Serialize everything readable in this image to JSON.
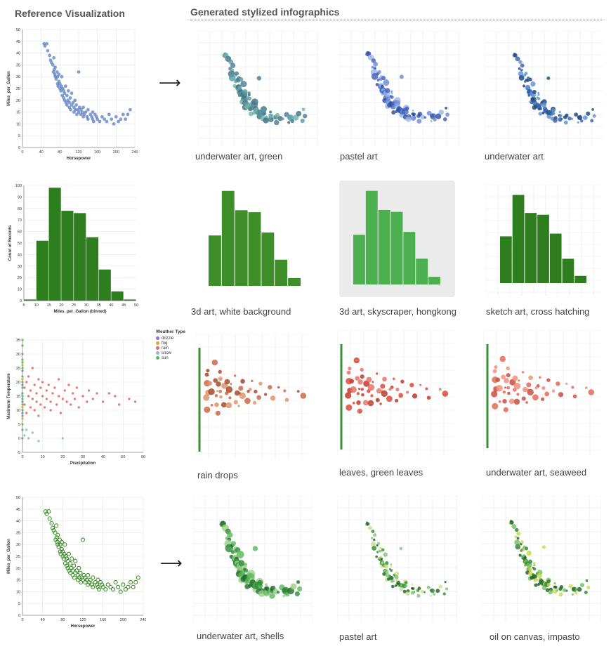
{
  "headers": {
    "reference": "Reference Visualization",
    "generated": "Generated stylized infographics"
  },
  "arrow_glyph": "⟶",
  "rows": [
    {
      "captions": [
        "underwater art, green",
        "pastel art",
        "underwater art"
      ]
    },
    {
      "captions": [
        "3d art, white background",
        "3d art, skyscraper, hongkong",
        "sketch art, cross hatching"
      ]
    },
    {
      "captions": [
        "rain drops",
        "leaves, green leaves",
        "underwater art, seaweed"
      ]
    },
    {
      "captions": [
        "underwater art, shells",
        "pastel art",
        "oil on canvas, impasto"
      ]
    }
  ],
  "colors": {
    "scatter_blue": "#5b7fbf",
    "bar_green": "#2e7d1e",
    "point_green": "#3f8f2a",
    "grid": "#e4e4e4",
    "weather_drizzle": "#7f7fd0",
    "weather_fog": "#e8a33d",
    "weather_rain": "#e06b66",
    "weather_snow": "#8fb8c8",
    "weather_sun": "#5cb85c"
  },
  "chart_data": [
    {
      "type": "scatter",
      "xlabel": "Horsepower",
      "ylabel": "Miles_per_Gallon",
      "xlim": [
        0,
        240
      ],
      "ylim": [
        0,
        50
      ],
      "xticks": [
        "0",
        "40",
        "80",
        "120",
        "160",
        "200",
        "240"
      ],
      "yticks": [
        "0",
        "5",
        "10",
        "15",
        "20",
        "25",
        "30",
        "35",
        "40",
        "45",
        "50"
      ],
      "color": "#5b7fbf",
      "points": [
        [
          46,
          44
        ],
        [
          48,
          43
        ],
        [
          52,
          44
        ],
        [
          54,
          41
        ],
        [
          58,
          39
        ],
        [
          60,
          37
        ],
        [
          62,
          36
        ],
        [
          65,
          35
        ],
        [
          66,
          32
        ],
        [
          67,
          38
        ],
        [
          68,
          33
        ],
        [
          69,
          31
        ],
        [
          70,
          30
        ],
        [
          70,
          34
        ],
        [
          72,
          29
        ],
        [
          74,
          32
        ],
        [
          75,
          27
        ],
        [
          75,
          30
        ],
        [
          76,
          26
        ],
        [
          78,
          28
        ],
        [
          78,
          31
        ],
        [
          80,
          25
        ],
        [
          80,
          27
        ],
        [
          82,
          24
        ],
        [
          83,
          26
        ],
        [
          84,
          30
        ],
        [
          85,
          22
        ],
        [
          86,
          25
        ],
        [
          88,
          24
        ],
        [
          88,
          21
        ],
        [
          90,
          20
        ],
        [
          90,
          23
        ],
        [
          92,
          26
        ],
        [
          93,
          19
        ],
        [
          95,
          22
        ],
        [
          95,
          18
        ],
        [
          97,
          20
        ],
        [
          98,
          24
        ],
        [
          100,
          17
        ],
        [
          100,
          19
        ],
        [
          102,
          21
        ],
        [
          103,
          16
        ],
        [
          105,
          18
        ],
        [
          105,
          23
        ],
        [
          108,
          19
        ],
        [
          110,
          17
        ],
        [
          110,
          15
        ],
        [
          112,
          20
        ],
        [
          113,
          16
        ],
        [
          115,
          18
        ],
        [
          116,
          14
        ],
        [
          118,
          16
        ],
        [
          120,
          15
        ],
        [
          120,
          32
        ],
        [
          122,
          17
        ],
        [
          125,
          14
        ],
        [
          125,
          16
        ],
        [
          128,
          15
        ],
        [
          130,
          13
        ],
        [
          130,
          17
        ],
        [
          132,
          14
        ],
        [
          135,
          15
        ],
        [
          138,
          13
        ],
        [
          140,
          12
        ],
        [
          140,
          16
        ],
        [
          145,
          14
        ],
        [
          148,
          13
        ],
        [
          150,
          15
        ],
        [
          150,
          12
        ],
        [
          152,
          11
        ],
        [
          155,
          14
        ],
        [
          158,
          13
        ],
        [
          160,
          12
        ],
        [
          165,
          11
        ],
        [
          170,
          13
        ],
        [
          175,
          12
        ],
        [
          180,
          11
        ],
        [
          185,
          14
        ],
        [
          190,
          12
        ],
        [
          195,
          10
        ],
        [
          200,
          13
        ],
        [
          205,
          11
        ],
        [
          210,
          12
        ],
        [
          215,
          14
        ],
        [
          220,
          12
        ],
        [
          225,
          14
        ],
        [
          230,
          16
        ]
      ]
    },
    {
      "type": "bar",
      "xlabel": "Miles_per_Gallon (binned)",
      "ylabel": "Count of Records",
      "bins": [
        [
          5,
          10
        ],
        [
          10,
          15
        ],
        [
          15,
          20
        ],
        [
          20,
          25
        ],
        [
          25,
          30
        ],
        [
          30,
          35
        ],
        [
          35,
          40
        ],
        [
          40,
          45
        ],
        [
          45,
          50
        ]
      ],
      "values": [
        1,
        52,
        98,
        78,
        76,
        55,
        27,
        8,
        1
      ],
      "xticks": [
        "5",
        "10",
        "15",
        "20",
        "25",
        "30",
        "35",
        "40",
        "45",
        "50"
      ],
      "yticks": [
        "0",
        "10",
        "20",
        "30",
        "40",
        "50",
        "60",
        "70",
        "80",
        "90",
        "100"
      ],
      "ylim": [
        0,
        100
      ],
      "color": "#2e7d1e"
    },
    {
      "type": "scatter",
      "xlabel": "Precipitation",
      "ylabel": "Maximum Temperature",
      "xlim": [
        0,
        60
      ],
      "ylim": [
        -5,
        35
      ],
      "xticks": [
        "0",
        "10",
        "20",
        "30",
        "40",
        "50",
        "60"
      ],
      "yticks": [
        "-5",
        "0",
        "5",
        "10",
        "15",
        "20",
        "25",
        "30",
        "35"
      ],
      "legend": {
        "title": "Weather Type",
        "items": [
          {
            "label": "drizzle",
            "color": "#7f7fd0"
          },
          {
            "label": "fog",
            "color": "#e8a33d"
          },
          {
            "label": "rain",
            "color": "#e06b66"
          },
          {
            "label": "snow",
            "color": "#8fb8c8"
          },
          {
            "label": "sun",
            "color": "#5cb85c"
          }
        ]
      },
      "series": [
        {
          "name": "sun",
          "color": "#5cb85c",
          "points": [
            [
              0,
              5
            ],
            [
              0,
              8
            ],
            [
              0,
              12
            ],
            [
              0,
              15
            ],
            [
              0,
              18
            ],
            [
              0,
              20
            ],
            [
              0,
              22
            ],
            [
              0,
              25
            ],
            [
              0,
              28
            ],
            [
              0,
              30
            ],
            [
              0,
              33
            ],
            [
              0,
              35
            ],
            [
              0,
              3
            ],
            [
              0,
              0
            ],
            [
              0,
              10
            ],
            [
              0,
              27
            ],
            [
              0,
              14
            ]
          ]
        },
        {
          "name": "drizzle",
          "color": "#7f7fd0",
          "points": [
            [
              0,
              9
            ],
            [
              0,
              13
            ],
            [
              0,
              16
            ],
            [
              0,
              19
            ],
            [
              0,
              24
            ]
          ]
        },
        {
          "name": "fog",
          "color": "#e8a33d",
          "points": [
            [
              0,
              7
            ],
            [
              0,
              11
            ],
            [
              0,
              21
            ],
            [
              0,
              26
            ]
          ]
        },
        {
          "name": "snow",
          "color": "#8fb8c8",
          "points": [
            [
              1,
              1
            ],
            [
              2,
              3
            ],
            [
              3,
              0
            ],
            [
              5,
              2
            ],
            [
              8,
              -1
            ],
            [
              20,
              0
            ]
          ]
        },
        {
          "name": "rain",
          "color": "#e06b66",
          "points": [
            [
              1,
              18
            ],
            [
              1,
              12
            ],
            [
              2,
              20
            ],
            [
              2,
              9
            ],
            [
              3,
              15
            ],
            [
              3,
              22
            ],
            [
              4,
              11
            ],
            [
              4,
              17
            ],
            [
              5,
              14
            ],
            [
              5,
              25
            ],
            [
              6,
              10
            ],
            [
              6,
              19
            ],
            [
              7,
              13
            ],
            [
              7,
              16
            ],
            [
              8,
              21
            ],
            [
              8,
              8
            ],
            [
              9,
              12
            ],
            [
              9,
              18
            ],
            [
              10,
              15
            ],
            [
              10,
              20
            ],
            [
              11,
              11
            ],
            [
              12,
              14
            ],
            [
              12,
              17
            ],
            [
              13,
              19
            ],
            [
              14,
              13
            ],
            [
              14,
              10
            ],
            [
              15,
              16
            ],
            [
              16,
              18
            ],
            [
              17,
              12
            ],
            [
              18,
              15
            ],
            [
              18,
              21
            ],
            [
              19,
              9
            ],
            [
              20,
              14
            ],
            [
              21,
              17
            ],
            [
              22,
              13
            ],
            [
              23,
              19
            ],
            [
              24,
              12
            ],
            [
              25,
              16
            ],
            [
              26,
              14
            ],
            [
              27,
              18
            ],
            [
              28,
              11
            ],
            [
              30,
              15
            ],
            [
              32,
              13
            ],
            [
              33,
              17
            ],
            [
              35,
              14
            ],
            [
              37,
              16
            ],
            [
              40,
              13
            ],
            [
              43,
              16
            ],
            [
              46,
              15
            ],
            [
              48,
              12
            ],
            [
              53,
              14
            ],
            [
              56,
              13
            ]
          ]
        }
      ]
    },
    {
      "type": "scatter",
      "xlabel": "Horsepower",
      "ylabel": "Miles_per_Gallon",
      "xlim": [
        0,
        240
      ],
      "ylim": [
        0,
        50
      ],
      "xticks": [
        "0",
        "40",
        "80",
        "120",
        "160",
        "200",
        "240"
      ],
      "yticks": [
        "0",
        "5",
        "10",
        "15",
        "20",
        "25",
        "30",
        "35",
        "40",
        "45",
        "50"
      ],
      "color": "#3f8f2a",
      "marker": "hollow",
      "points": [
        [
          46,
          44
        ],
        [
          48,
          43
        ],
        [
          52,
          44
        ],
        [
          54,
          41
        ],
        [
          58,
          39
        ],
        [
          60,
          37
        ],
        [
          62,
          36
        ],
        [
          65,
          35
        ],
        [
          66,
          32
        ],
        [
          67,
          38
        ],
        [
          68,
          33
        ],
        [
          69,
          31
        ],
        [
          70,
          30
        ],
        [
          70,
          34
        ],
        [
          72,
          29
        ],
        [
          74,
          32
        ],
        [
          75,
          27
        ],
        [
          75,
          30
        ],
        [
          76,
          26
        ],
        [
          78,
          28
        ],
        [
          78,
          31
        ],
        [
          80,
          25
        ],
        [
          80,
          27
        ],
        [
          82,
          24
        ],
        [
          83,
          26
        ],
        [
          84,
          30
        ],
        [
          85,
          22
        ],
        [
          86,
          25
        ],
        [
          88,
          24
        ],
        [
          88,
          21
        ],
        [
          90,
          20
        ],
        [
          90,
          23
        ],
        [
          92,
          26
        ],
        [
          93,
          19
        ],
        [
          95,
          22
        ],
        [
          95,
          18
        ],
        [
          97,
          20
        ],
        [
          98,
          24
        ],
        [
          100,
          17
        ],
        [
          100,
          19
        ],
        [
          102,
          21
        ],
        [
          103,
          16
        ],
        [
          105,
          18
        ],
        [
          105,
          23
        ],
        [
          108,
          19
        ],
        [
          110,
          17
        ],
        [
          110,
          15
        ],
        [
          112,
          20
        ],
        [
          113,
          16
        ],
        [
          115,
          18
        ],
        [
          116,
          14
        ],
        [
          118,
          16
        ],
        [
          120,
          15
        ],
        [
          120,
          32
        ],
        [
          122,
          17
        ],
        [
          125,
          14
        ],
        [
          125,
          16
        ],
        [
          128,
          15
        ],
        [
          130,
          13
        ],
        [
          130,
          17
        ],
        [
          132,
          14
        ],
        [
          135,
          15
        ],
        [
          138,
          13
        ],
        [
          140,
          12
        ],
        [
          140,
          16
        ],
        [
          145,
          14
        ],
        [
          148,
          13
        ],
        [
          150,
          15
        ],
        [
          150,
          12
        ],
        [
          152,
          11
        ],
        [
          155,
          14
        ],
        [
          158,
          13
        ],
        [
          160,
          12
        ],
        [
          165,
          11
        ],
        [
          170,
          13
        ],
        [
          175,
          12
        ],
        [
          180,
          11
        ],
        [
          185,
          14
        ],
        [
          190,
          12
        ],
        [
          195,
          10
        ],
        [
          200,
          13
        ],
        [
          205,
          11
        ],
        [
          210,
          12
        ],
        [
          215,
          14
        ],
        [
          220,
          12
        ],
        [
          225,
          14
        ],
        [
          230,
          16
        ]
      ]
    }
  ]
}
